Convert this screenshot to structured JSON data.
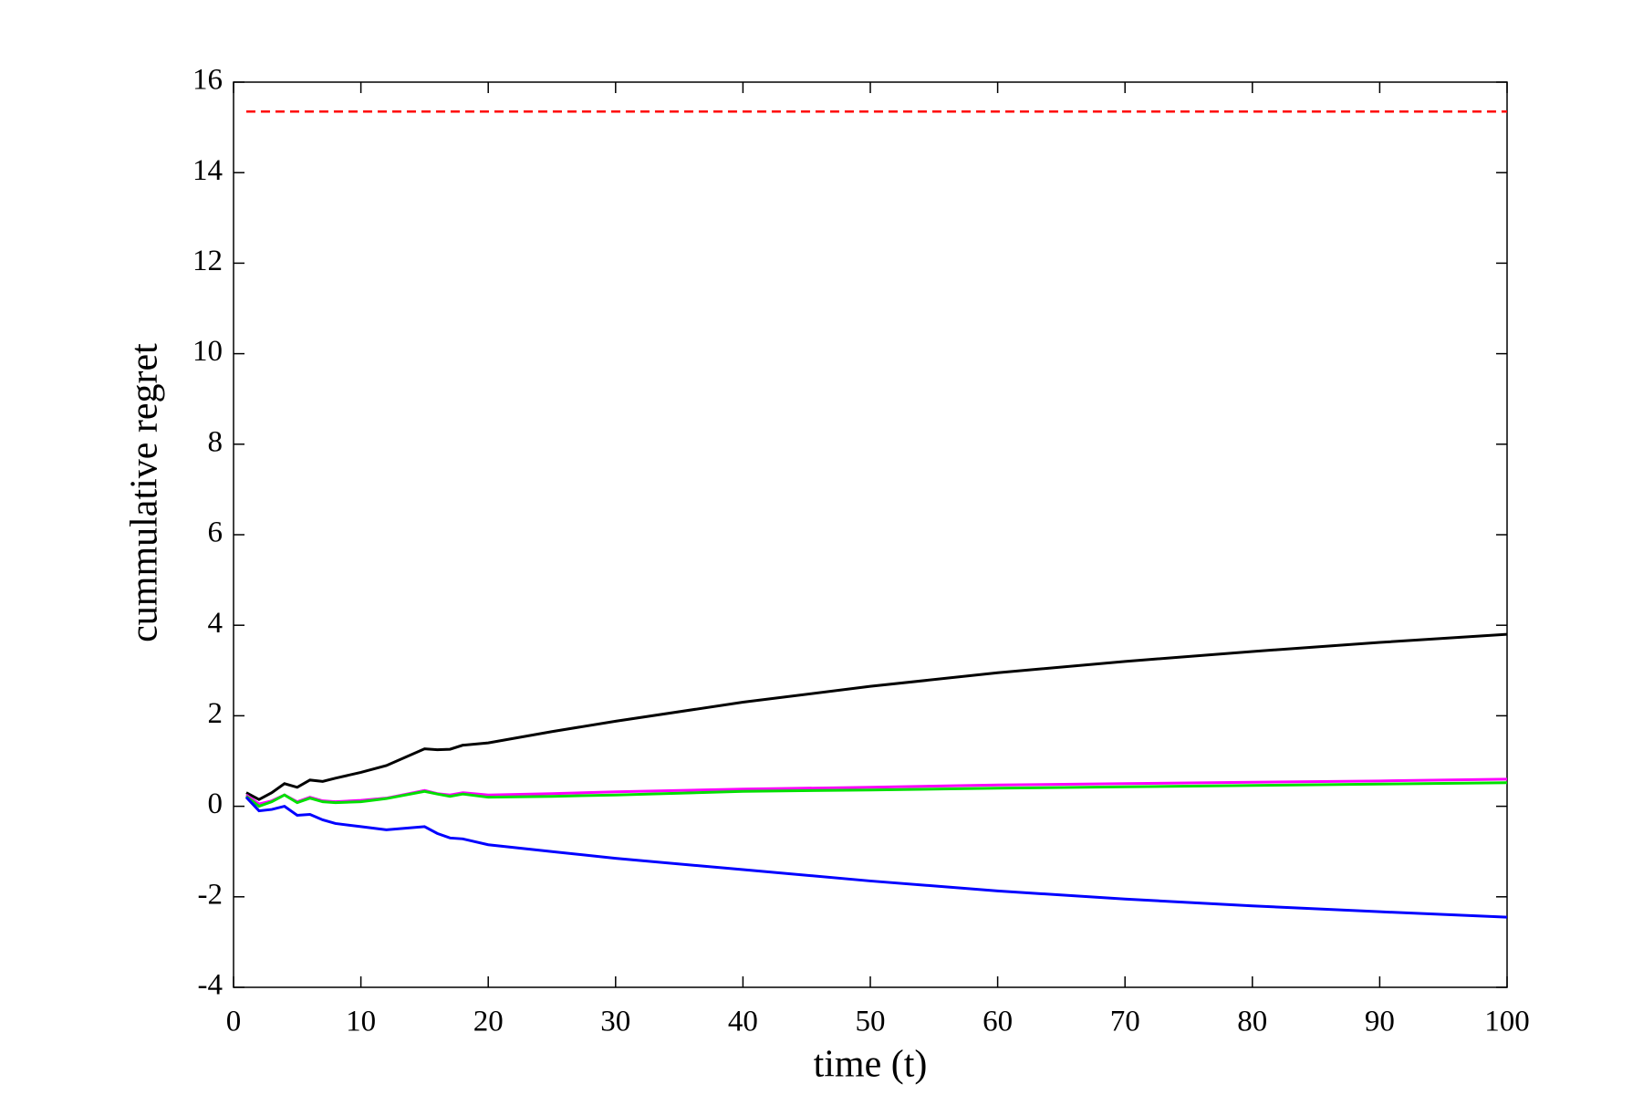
{
  "chart_data": {
    "type": "line",
    "x_label": "time (t)",
    "y_label": "cummulative regret",
    "x": [
      1,
      2,
      3,
      4,
      5,
      6,
      7,
      8,
      10,
      12,
      15,
      16,
      17,
      18,
      20,
      25,
      30,
      40,
      50,
      60,
      70,
      80,
      90,
      100
    ],
    "series": [
      {
        "color": "#000000",
        "values": [
          0.3,
          0.15,
          0.3,
          0.5,
          0.42,
          0.58,
          0.55,
          0.62,
          0.75,
          0.9,
          1.27,
          1.25,
          1.26,
          1.35,
          1.4,
          1.65,
          1.88,
          2.3,
          2.65,
          2.95,
          3.2,
          3.42,
          3.62,
          3.8
        ]
      },
      {
        "color": "#ff00ff",
        "values": [
          0.25,
          0.05,
          0.12,
          0.25,
          0.1,
          0.2,
          0.12,
          0.1,
          0.13,
          0.18,
          0.35,
          0.28,
          0.25,
          0.3,
          0.25,
          0.28,
          0.32,
          0.38,
          0.42,
          0.47,
          0.5,
          0.53,
          0.56,
          0.6
        ]
      },
      {
        "color": "#00e000",
        "values": [
          0.22,
          0.0,
          0.1,
          0.25,
          0.08,
          0.18,
          0.1,
          0.08,
          0.1,
          0.17,
          0.33,
          0.27,
          0.22,
          0.27,
          0.2,
          0.22,
          0.25,
          0.33,
          0.36,
          0.4,
          0.43,
          0.46,
          0.49,
          0.52
        ]
      },
      {
        "color": "#0000ff",
        "values": [
          0.2,
          -0.1,
          -0.07,
          0.0,
          -0.2,
          -0.18,
          -0.3,
          -0.38,
          -0.45,
          -0.52,
          -0.45,
          -0.6,
          -0.7,
          -0.72,
          -0.85,
          -1.0,
          -1.15,
          -1.4,
          -1.65,
          -1.87,
          -2.05,
          -2.2,
          -2.33,
          -2.45
        ]
      },
      {
        "color": "#ff0000",
        "dashed": true,
        "x": [
          1,
          100
        ],
        "values": [
          15.35,
          15.35
        ]
      }
    ],
    "xlim": [
      0,
      100
    ],
    "xticks": [
      0,
      10,
      20,
      30,
      40,
      50,
      60,
      70,
      80,
      90,
      100
    ],
    "ylim": [
      -4,
      16
    ],
    "yticks": [
      -4,
      -2,
      0,
      2,
      4,
      6,
      8,
      10,
      12,
      14,
      16
    ],
    "grid": false
  }
}
